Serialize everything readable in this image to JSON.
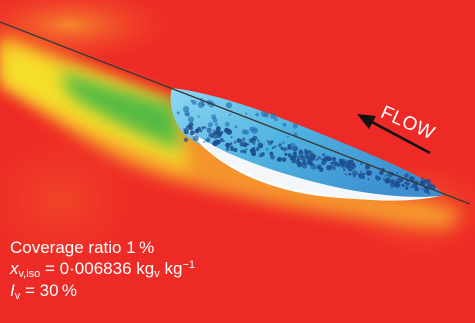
{
  "flow_label": "FLOW",
  "caption": {
    "coverage": "Coverage ratio 1 %",
    "xv_symbol": "x",
    "xv_subscript": "v,iso",
    "xv_equals": " = 0·006836 kg",
    "xv_unit_sub1": "v",
    "xv_unit_mid": " kg",
    "xv_unit_sup": "−1",
    "iv_symbol": "I",
    "iv_subscript": "v",
    "iv_value": " = 30 %"
  },
  "colors": {
    "background_red": "#ee2a26",
    "warm_orange": "#f26b2a",
    "yellow": "#f6e62a",
    "green": "#39b54a",
    "cavity_blue": "#5ec3e8",
    "bubble_navy": "#1f4f91",
    "text": "#ffffff"
  }
}
